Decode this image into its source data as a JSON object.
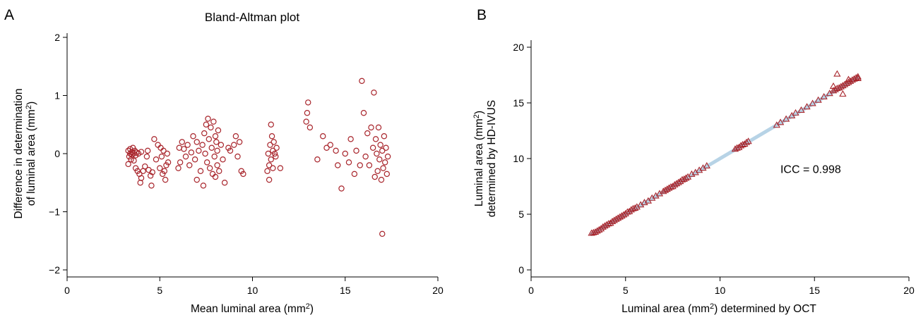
{
  "chart_data": [
    {
      "panel": "A",
      "type": "scatter",
      "title": "Bland-Altman plot",
      "xlabel": "Mean luminal area (mm2)",
      "ylabel_line1": "Difference in determination",
      "ylabel_line2": "of luminal area (mm2)",
      "xlim": [
        0,
        20
      ],
      "ylim": [
        -2,
        2
      ],
      "xticks": [
        "0",
        "5",
        "10",
        "15",
        "20"
      ],
      "yticks": [
        "−2",
        "−1",
        "0",
        "1",
        "2"
      ],
      "marker": "circle",
      "color": "#a8242b",
      "points": [
        [
          3.3,
          -0.18
        ],
        [
          3.3,
          0.05
        ],
        [
          3.35,
          -0.05
        ],
        [
          3.4,
          0.0
        ],
        [
          3.4,
          0.08
        ],
        [
          3.45,
          -0.1
        ],
        [
          3.5,
          0.03
        ],
        [
          3.5,
          -0.02
        ],
        [
          3.55,
          0.1
        ],
        [
          3.6,
          0.0
        ],
        [
          3.6,
          -0.12
        ],
        [
          3.65,
          0.05
        ],
        [
          3.7,
          -0.03
        ],
        [
          3.7,
          -0.25
        ],
        [
          3.75,
          0.02
        ],
        [
          3.8,
          -0.3
        ],
        [
          3.85,
          0.0
        ],
        [
          3.9,
          -0.35
        ],
        [
          3.95,
          -0.5
        ],
        [
          4.0,
          0.03
        ],
        [
          4.0,
          -0.42
        ],
        [
          4.1,
          -0.3
        ],
        [
          4.2,
          -0.22
        ],
        [
          4.3,
          -0.05
        ],
        [
          4.35,
          0.05
        ],
        [
          4.4,
          -0.28
        ],
        [
          4.5,
          -0.38
        ],
        [
          4.55,
          -0.55
        ],
        [
          4.6,
          -0.32
        ],
        [
          4.7,
          0.25
        ],
        [
          4.8,
          -0.1
        ],
        [
          4.9,
          0.15
        ],
        [
          5.0,
          -0.25
        ],
        [
          5.05,
          0.1
        ],
        [
          5.1,
          -0.05
        ],
        [
          5.15,
          -0.35
        ],
        [
          5.2,
          0.05
        ],
        [
          5.25,
          -0.3
        ],
        [
          5.3,
          -0.45
        ],
        [
          5.35,
          -0.2
        ],
        [
          5.4,
          0.0
        ],
        [
          5.45,
          -0.15
        ],
        [
          6.0,
          -0.25
        ],
        [
          6.05,
          0.1
        ],
        [
          6.1,
          -0.15
        ],
        [
          6.2,
          0.2
        ],
        [
          6.3,
          0.08
        ],
        [
          6.4,
          -0.05
        ],
        [
          6.5,
          0.15
        ],
        [
          6.6,
          -0.2
        ],
        [
          6.7,
          0.02
        ],
        [
          6.8,
          0.3
        ],
        [
          6.9,
          -0.1
        ],
        [
          7.0,
          0.2
        ],
        [
          7.0,
          -0.45
        ],
        [
          7.1,
          0.05
        ],
        [
          7.2,
          -0.3
        ],
        [
          7.3,
          0.15
        ],
        [
          7.35,
          -0.55
        ],
        [
          7.4,
          0.35
        ],
        [
          7.45,
          0.0
        ],
        [
          7.5,
          0.5
        ],
        [
          7.55,
          -0.15
        ],
        [
          7.6,
          0.6
        ],
        [
          7.65,
          0.25
        ],
        [
          7.7,
          -0.25
        ],
        [
          7.75,
          0.45
        ],
        [
          7.8,
          0.1
        ],
        [
          7.85,
          -0.35
        ],
        [
          7.9,
          0.55
        ],
        [
          7.95,
          -0.05
        ],
        [
          8.0,
          0.3
        ],
        [
          8.0,
          -0.4
        ],
        [
          8.05,
          0.2
        ],
        [
          8.1,
          0.05
        ],
        [
          8.1,
          -0.2
        ],
        [
          8.15,
          0.4
        ],
        [
          8.2,
          -0.3
        ],
        [
          8.3,
          0.15
        ],
        [
          8.4,
          -0.1
        ],
        [
          8.5,
          -0.5
        ],
        [
          8.7,
          0.1
        ],
        [
          8.8,
          0.05
        ],
        [
          9.0,
          0.15
        ],
        [
          9.1,
          0.3
        ],
        [
          9.2,
          -0.05
        ],
        [
          9.3,
          0.2
        ],
        [
          9.4,
          -0.3
        ],
        [
          9.5,
          -0.35
        ],
        [
          10.8,
          -0.3
        ],
        [
          10.85,
          0.0
        ],
        [
          10.9,
          -0.2
        ],
        [
          10.9,
          -0.45
        ],
        [
          10.95,
          0.15
        ],
        [
          11.0,
          0.5
        ],
        [
          11.0,
          -0.1
        ],
        [
          11.05,
          0.3
        ],
        [
          11.1,
          0.05
        ],
        [
          11.1,
          -0.25
        ],
        [
          11.15,
          0.2
        ],
        [
          11.2,
          0.0
        ],
        [
          11.25,
          -0.05
        ],
        [
          11.3,
          0.1
        ],
        [
          11.5,
          -0.25
        ],
        [
          12.9,
          0.55
        ],
        [
          12.95,
          0.7
        ],
        [
          13.0,
          0.88
        ],
        [
          13.1,
          0.45
        ],
        [
          13.5,
          -0.1
        ],
        [
          13.8,
          0.3
        ],
        [
          14.0,
          0.1
        ],
        [
          14.2,
          0.15
        ],
        [
          14.5,
          0.05
        ],
        [
          14.6,
          -0.2
        ],
        [
          14.8,
          -0.6
        ],
        [
          15.0,
          0.0
        ],
        [
          15.2,
          -0.15
        ],
        [
          15.3,
          0.25
        ],
        [
          15.5,
          -0.35
        ],
        [
          15.6,
          0.05
        ],
        [
          15.8,
          -0.2
        ],
        [
          15.9,
          1.25
        ],
        [
          16.0,
          0.7
        ],
        [
          16.1,
          -0.05
        ],
        [
          16.2,
          0.35
        ],
        [
          16.3,
          -0.2
        ],
        [
          16.4,
          0.45
        ],
        [
          16.5,
          0.1
        ],
        [
          16.55,
          1.05
        ],
        [
          16.6,
          -0.4
        ],
        [
          16.65,
          0.25
        ],
        [
          16.7,
          0.0
        ],
        [
          16.75,
          -0.3
        ],
        [
          16.8,
          0.45
        ],
        [
          16.85,
          -0.1
        ],
        [
          16.9,
          0.15
        ],
        [
          16.95,
          -0.45
        ],
        [
          17.0,
          -1.38
        ],
        [
          17.0,
          0.05
        ],
        [
          17.05,
          -0.25
        ],
        [
          17.1,
          0.3
        ],
        [
          17.15,
          -0.15
        ],
        [
          17.2,
          0.1
        ],
        [
          17.25,
          -0.35
        ],
        [
          17.3,
          -0.05
        ]
      ]
    },
    {
      "panel": "B",
      "type": "scatter",
      "xlabel": "Luminal area (mm2) determined by OCT",
      "ylabel_line1": "Luminal area (mm2)",
      "ylabel_line2": "determined by HD-IVUS",
      "xlim": [
        0,
        20
      ],
      "ylim": [
        0,
        20
      ],
      "xticks": [
        "0",
        "5",
        "10",
        "15",
        "20"
      ],
      "yticks": [
        "0",
        "5",
        "10",
        "15",
        "20"
      ],
      "marker": "triangle",
      "color": "#a8242b",
      "fit_line": {
        "from": [
          3.2,
          3.2
        ],
        "to": [
          17.3,
          17.3
        ],
        "color": "#b7d3e6"
      },
      "annotation": "ICC = 0.998",
      "annotation_pos": [
        14.8,
        8.7
      ],
      "points": [
        [
          3.2,
          3.3
        ],
        [
          3.3,
          3.35
        ],
        [
          3.4,
          3.4
        ],
        [
          3.5,
          3.5
        ],
        [
          3.6,
          3.6
        ],
        [
          3.7,
          3.7
        ],
        [
          3.8,
          3.85
        ],
        [
          3.9,
          3.95
        ],
        [
          4.0,
          4.05
        ],
        [
          4.1,
          4.15
        ],
        [
          4.2,
          4.2
        ],
        [
          4.3,
          4.35
        ],
        [
          4.4,
          4.45
        ],
        [
          4.5,
          4.55
        ],
        [
          4.6,
          4.65
        ],
        [
          4.7,
          4.75
        ],
        [
          4.8,
          4.85
        ],
        [
          4.9,
          4.95
        ],
        [
          5.0,
          5.05
        ],
        [
          5.1,
          5.2
        ],
        [
          5.2,
          5.25
        ],
        [
          5.3,
          5.4
        ],
        [
          5.4,
          5.5
        ],
        [
          5.5,
          5.55
        ],
        [
          5.6,
          5.65
        ],
        [
          5.8,
          5.85
        ],
        [
          6.0,
          6.05
        ],
        [
          6.2,
          6.2
        ],
        [
          6.4,
          6.45
        ],
        [
          6.6,
          6.65
        ],
        [
          6.8,
          6.85
        ],
        [
          7.0,
          7.05
        ],
        [
          7.1,
          7.15
        ],
        [
          7.2,
          7.25
        ],
        [
          7.3,
          7.35
        ],
        [
          7.4,
          7.45
        ],
        [
          7.5,
          7.5
        ],
        [
          7.6,
          7.65
        ],
        [
          7.7,
          7.75
        ],
        [
          7.8,
          7.85
        ],
        [
          7.9,
          7.95
        ],
        [
          8.0,
          8.1
        ],
        [
          8.1,
          8.15
        ],
        [
          8.2,
          8.25
        ],
        [
          8.3,
          8.35
        ],
        [
          8.5,
          8.6
        ],
        [
          8.7,
          8.75
        ],
        [
          8.9,
          8.95
        ],
        [
          9.1,
          9.15
        ],
        [
          9.3,
          9.35
        ],
        [
          10.8,
          10.85
        ],
        [
          10.9,
          10.95
        ],
        [
          11.0,
          11.0
        ],
        [
          11.1,
          11.15
        ],
        [
          11.2,
          11.25
        ],
        [
          11.3,
          11.3
        ],
        [
          11.4,
          11.45
        ],
        [
          11.5,
          11.55
        ],
        [
          13.0,
          13.0
        ],
        [
          13.2,
          13.25
        ],
        [
          13.5,
          13.55
        ],
        [
          13.8,
          13.85
        ],
        [
          14.0,
          14.1
        ],
        [
          14.3,
          14.35
        ],
        [
          14.6,
          14.65
        ],
        [
          14.9,
          14.95
        ],
        [
          15.2,
          15.25
        ],
        [
          15.5,
          15.55
        ],
        [
          15.8,
          15.85
        ],
        [
          16.0,
          16.1
        ],
        [
          16.1,
          16.2
        ],
        [
          16.2,
          16.3
        ],
        [
          16.3,
          16.35
        ],
        [
          16.4,
          16.45
        ],
        [
          16.5,
          16.55
        ],
        [
          16.6,
          16.65
        ],
        [
          16.7,
          16.75
        ],
        [
          16.8,
          16.85
        ],
        [
          16.9,
          16.95
        ],
        [
          17.0,
          17.05
        ],
        [
          17.1,
          17.15
        ],
        [
          17.2,
          17.25
        ],
        [
          17.3,
          17.35
        ],
        [
          16.2,
          17.6
        ],
        [
          16.5,
          15.8
        ],
        [
          16.0,
          16.5
        ],
        [
          16.8,
          17.1
        ],
        [
          17.3,
          17.2
        ]
      ]
    }
  ]
}
